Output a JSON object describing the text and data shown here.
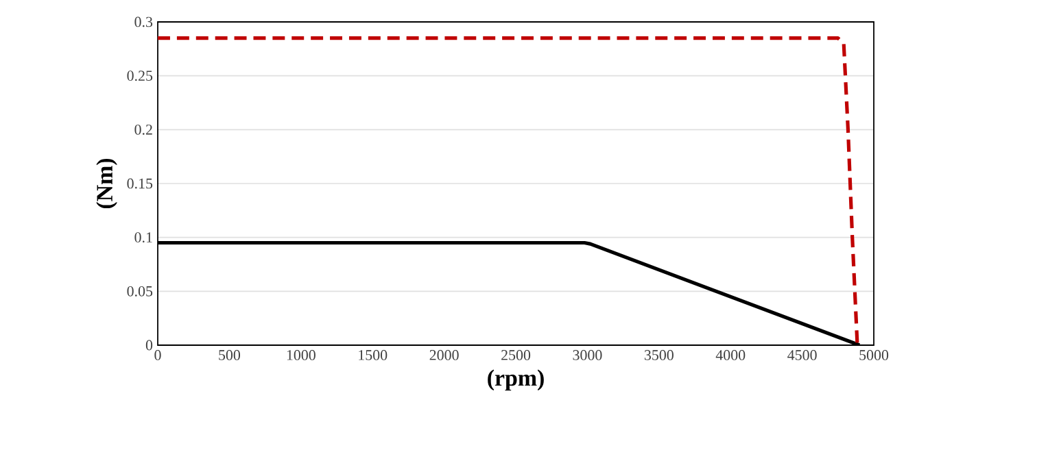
{
  "chart_data": {
    "type": "line",
    "xlabel": "(rpm)",
    "ylabel": "(Nm)",
    "xlim": [
      0,
      5000
    ],
    "ylim": [
      0,
      0.3
    ],
    "xticks": [
      0,
      500,
      1000,
      1500,
      2000,
      2500,
      3000,
      3500,
      4000,
      4500,
      5000
    ],
    "yticks": [
      0,
      0.05,
      0.1,
      0.15,
      0.2,
      0.25,
      0.3
    ],
    "grid": "y",
    "series": [
      {
        "color": "#000000",
        "line_style": "solid",
        "x": [
          0,
          2980,
          3020,
          4900
        ],
        "values": [
          0.095,
          0.095,
          0.094,
          0
        ]
      },
      {
        "color": "#c00000",
        "line_style": "dashed",
        "x": [
          0,
          4750,
          4790,
          4820,
          4850,
          4885
        ],
        "values": [
          0.285,
          0.285,
          0.28,
          0.2,
          0.1,
          0
        ]
      }
    ]
  }
}
